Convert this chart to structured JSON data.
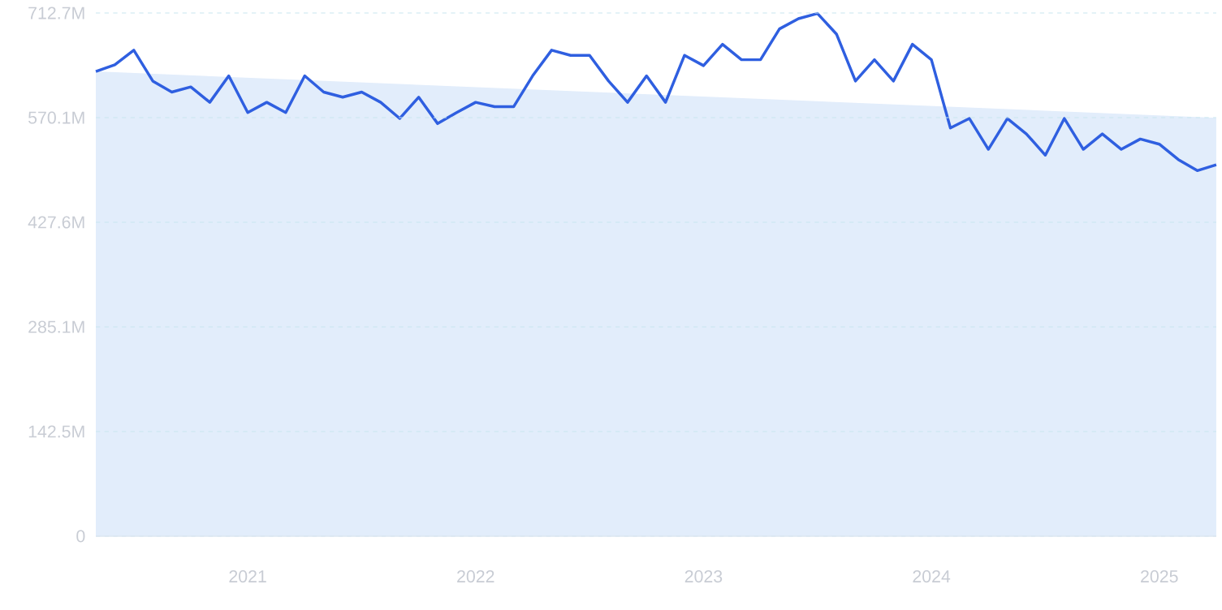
{
  "chart_data": {
    "type": "line",
    "xlim": [
      "2020-05",
      "2025-04"
    ],
    "ylim": [
      0,
      712.7
    ],
    "xticks": [
      {
        "value": "2021-01",
        "label": "2021"
      },
      {
        "value": "2022-01",
        "label": "2022"
      },
      {
        "value": "2023-01",
        "label": "2023"
      },
      {
        "value": "2024-01",
        "label": "2024"
      },
      {
        "value": "2025-01",
        "label": "2025"
      }
    ],
    "yticks": [
      {
        "value": 0,
        "label": "0"
      },
      {
        "value": 142.5,
        "label": "142.5M"
      },
      {
        "value": 285.1,
        "label": "285.1M"
      },
      {
        "value": 427.6,
        "label": "427.6M"
      },
      {
        "value": 570.1,
        "label": "570.1M"
      },
      {
        "value": 712.7,
        "label": "712.7M"
      }
    ],
    "grid": "y",
    "series": [
      {
        "type": "area",
        "color": "#e2edfb",
        "x": [
          "2020-05",
          "2025-04"
        ],
        "values": [
          633,
          570
        ]
      },
      {
        "color": "#2f5fe0",
        "x": [
          "2020-05",
          "2020-06",
          "2020-07",
          "2020-08",
          "2020-09",
          "2020-10",
          "2020-11",
          "2020-12",
          "2021-01",
          "2021-02",
          "2021-03",
          "2021-04",
          "2021-05",
          "2021-06",
          "2021-07",
          "2021-08",
          "2021-09",
          "2021-10",
          "2021-11",
          "2021-12",
          "2022-01",
          "2022-02",
          "2022-03",
          "2022-04",
          "2022-05",
          "2022-06",
          "2022-07",
          "2022-08",
          "2022-09",
          "2022-10",
          "2022-11",
          "2022-12",
          "2023-01",
          "2023-02",
          "2023-03",
          "2023-04",
          "2023-05",
          "2023-06",
          "2023-07",
          "2023-08",
          "2023-09",
          "2023-10",
          "2023-11",
          "2023-12",
          "2024-01",
          "2024-02",
          "2024-03",
          "2024-04",
          "2024-05",
          "2024-06",
          "2024-07",
          "2024-08",
          "2024-09",
          "2024-10",
          "2024-11",
          "2024-12",
          "2025-01",
          "2025-02",
          "2025-03",
          "2025-04"
        ],
        "values": [
          633,
          642,
          662,
          620,
          605,
          612,
          591,
          627,
          577,
          591,
          577,
          627,
          605,
          598,
          605,
          591,
          569,
          598,
          562,
          577,
          591,
          585,
          585,
          627,
          662,
          655,
          655,
          620,
          591,
          627,
          591,
          655,
          641,
          670,
          649,
          649,
          691,
          705,
          712,
          684,
          620,
          649,
          620,
          670,
          649,
          556,
          569,
          527,
          569,
          548,
          519,
          569,
          527,
          548,
          527,
          541,
          534,
          513,
          498,
          506
        ]
      }
    ]
  }
}
